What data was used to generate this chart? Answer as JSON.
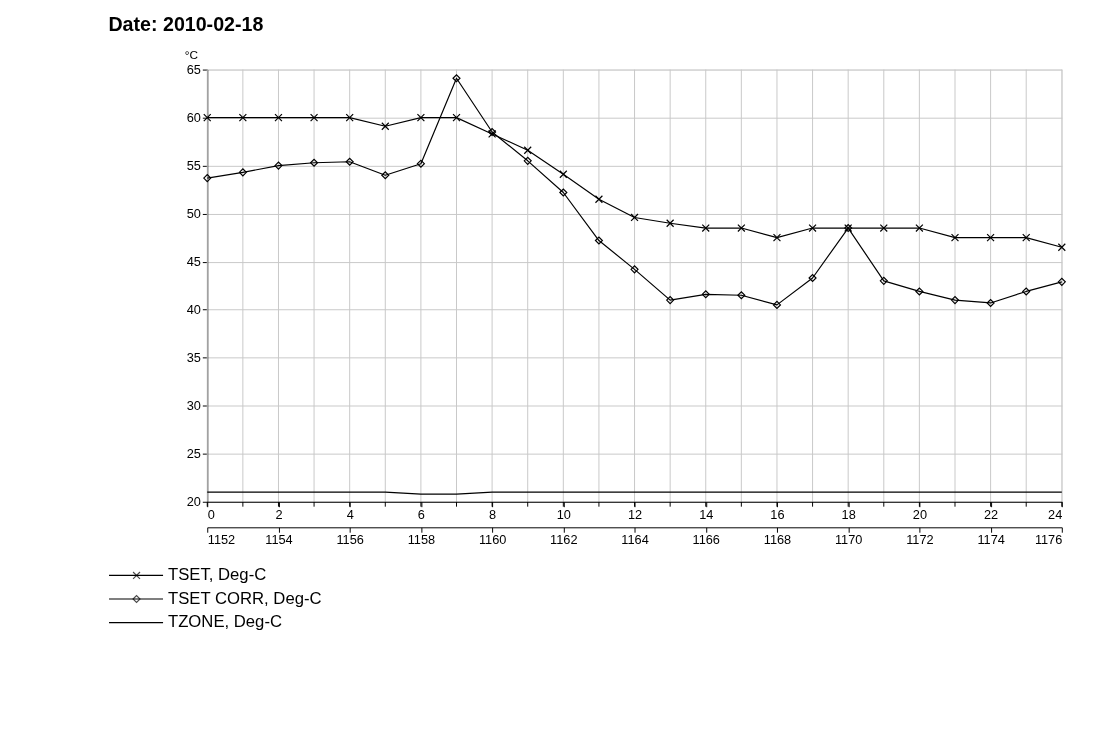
{
  "chart_data": {
    "type": "line",
    "title": "Date: 2010-02-18",
    "ylabel": "°C",
    "x": [
      0,
      1,
      2,
      3,
      4,
      5,
      6,
      7,
      8,
      9,
      10,
      11,
      12,
      13,
      14,
      15,
      16,
      17,
      18,
      19,
      20,
      21,
      22,
      23,
      24
    ],
    "series": [
      {
        "name": "TSET, Deg-C",
        "color": "#000000",
        "marker": "cross",
        "values": [
          60,
          60,
          60,
          60,
          60,
          59.1,
          60,
          60,
          58.3,
          56.6,
          54.1,
          51.5,
          49.6,
          49,
          48.5,
          48.5,
          47.5,
          48.5,
          48.5,
          48.5,
          48.5,
          47.5,
          47.5,
          47.5,
          46.5
        ]
      },
      {
        "name": "TSET CORR, Deg-C",
        "color": "#000000",
        "marker": "diamond",
        "values": [
          53.7,
          54.3,
          55,
          55.3,
          55.4,
          54,
          55.2,
          64.1,
          58.5,
          55.5,
          52.2,
          47.2,
          44.2,
          41,
          41.6,
          41.5,
          40.5,
          43.3,
          48.5,
          43,
          41.9,
          41,
          40.7,
          41.9,
          42.9
        ]
      },
      {
        "name": "TZONE, Deg-C",
        "color": "#000000",
        "values": [
          21,
          21,
          21,
          21,
          21,
          21,
          20.8,
          20.8,
          21,
          21,
          21,
          21,
          21,
          21,
          21,
          21,
          21,
          21,
          21,
          21,
          21,
          21,
          21,
          21,
          21
        ]
      }
    ],
    "xlim": [
      0,
      24
    ],
    "xticks": [
      0,
      {
        "value": 1,
        "label": null
      },
      2,
      {
        "value": 3,
        "label": null
      },
      4,
      {
        "value": 5,
        "label": null
      },
      6,
      {
        "value": 7,
        "label": null
      },
      8,
      {
        "value": 9,
        "label": null
      },
      10,
      {
        "value": 11,
        "label": null
      },
      12,
      {
        "value": 13,
        "label": null
      },
      14,
      {
        "value": 15,
        "label": null
      },
      16,
      {
        "value": 17,
        "label": null
      },
      18,
      {
        "value": 19,
        "label": null
      },
      20,
      {
        "value": 21,
        "label": null
      },
      22,
      {
        "value": 23,
        "label": null
      },
      24
    ],
    "x2lim": [
      1152,
      1176
    ],
    "x2ticks": [
      1152,
      1154,
      1156,
      1158,
      1160,
      1162,
      1164,
      1166,
      1168,
      1170,
      1172,
      1174,
      1176
    ],
    "ylim": [
      20,
      65
    ],
    "yticks": [
      20,
      25,
      30,
      35,
      40,
      45,
      50,
      55,
      60,
      65
    ],
    "grid": true,
    "legend": "bottom left",
    "line_style": "solid"
  }
}
